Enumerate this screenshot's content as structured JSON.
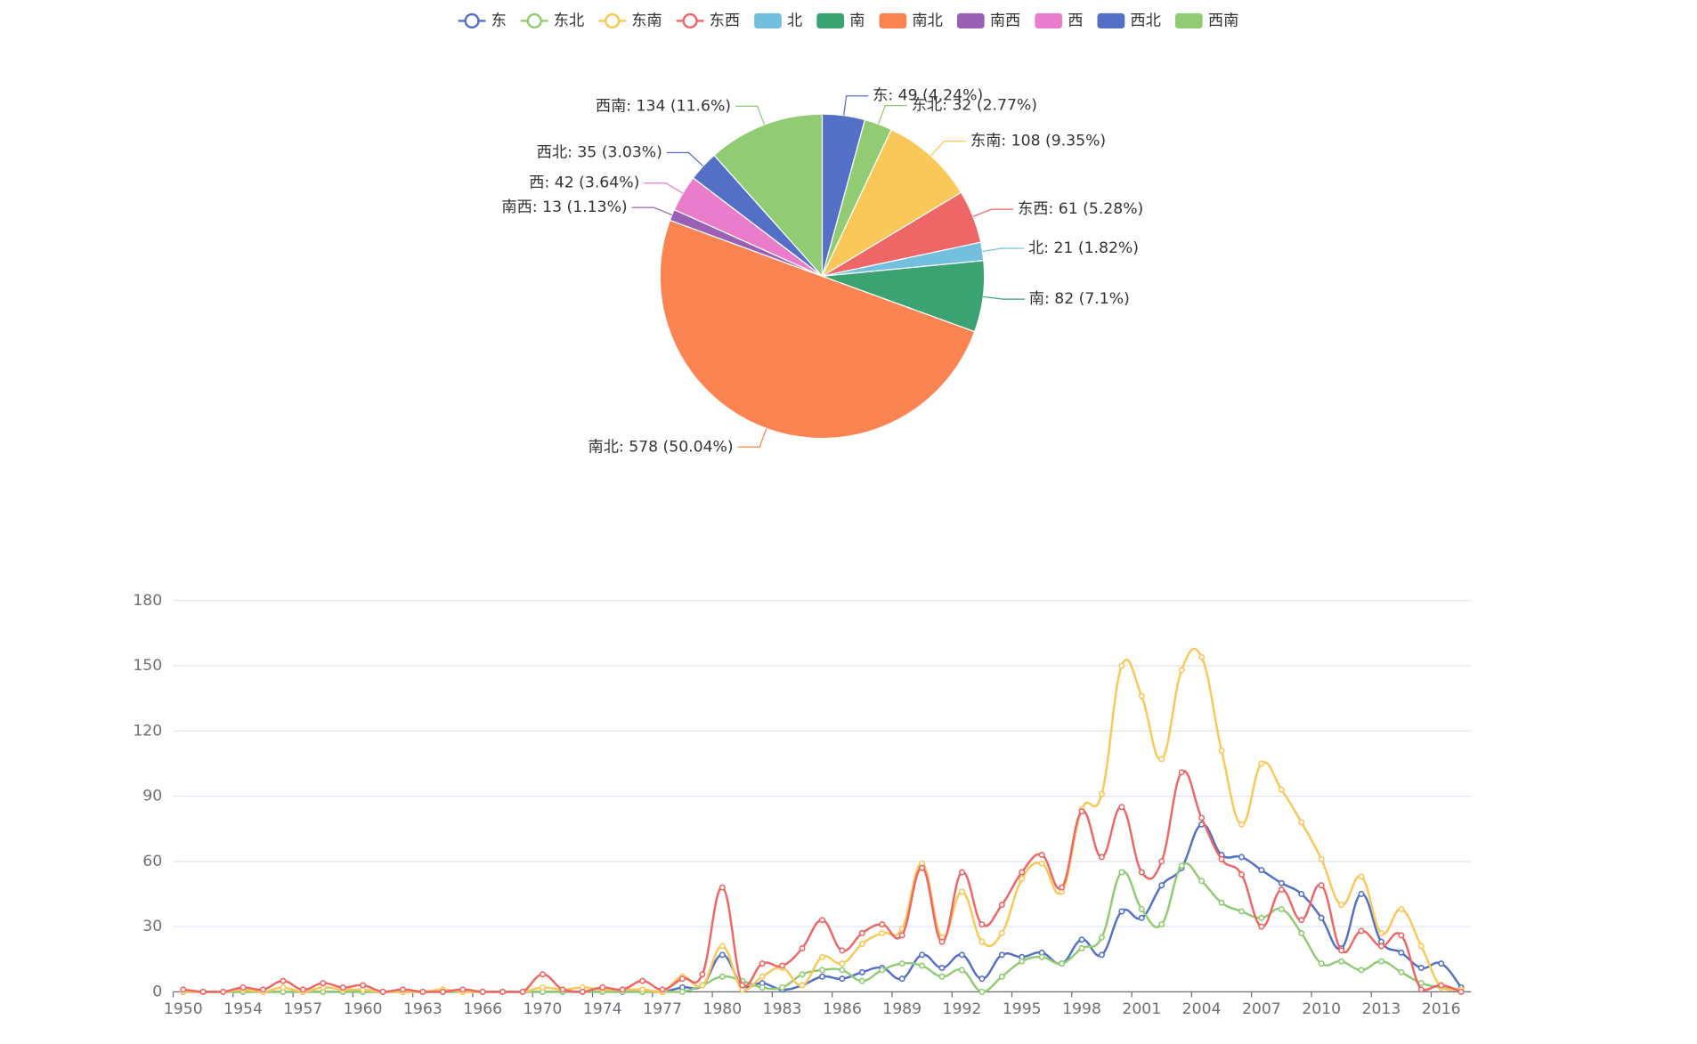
{
  "chart_data": [
    {
      "type": "pie",
      "categories": [
        "东",
        "东北",
        "东南",
        "东西",
        "北",
        "南",
        "南北",
        "南西",
        "西",
        "西北",
        "西南"
      ],
      "values": [
        49,
        32,
        108,
        61,
        21,
        82,
        578,
        13,
        42,
        35,
        134
      ],
      "value_labels": [
        "东: 49 (4.24%)",
        "东北: 32 (2.77%)",
        "东南: 108 (9.35%)",
        "东西: 61 (5.28%)",
        "北: 21 (1.82%)",
        "南: 82 (7.1%)",
        "南北: 578 (50.04%)",
        "南西: 13 (1.13%)",
        "西: 42 (3.64%)",
        "西北: 35 (3.03%)",
        "西南: 134 (11.6%)"
      ],
      "colors": [
        "#5470c6",
        "#91cc75",
        "#fac858",
        "#ee6666",
        "#73c0de",
        "#3ba272",
        "#fc8452",
        "#9a60b4",
        "#ea7ccc",
        "#5470c6",
        "#91cc75"
      ]
    },
    {
      "type": "line",
      "categories": [
        "1950",
        null,
        null,
        "1954",
        null,
        null,
        "1957",
        null,
        null,
        "1960",
        null,
        null,
        "1963",
        null,
        null,
        "1966",
        null,
        null,
        "1970",
        null,
        null,
        "1974",
        null,
        null,
        "1977",
        null,
        null,
        "1980",
        null,
        null,
        "1983",
        null,
        null,
        "1986",
        null,
        null,
        "1989",
        null,
        null,
        "1992",
        null,
        null,
        "1995",
        null,
        null,
        "1998",
        null,
        null,
        "2001",
        null,
        null,
        "2004",
        null,
        null,
        "2007",
        null,
        null,
        "2010",
        null,
        null,
        "2013",
        null,
        null,
        "2016",
        null
      ],
      "ylim": [
        0,
        180
      ],
      "yticks": [
        0,
        30,
        60,
        90,
        120,
        150,
        180
      ],
      "grid": true,
      "series": [
        {
          "name": "东",
          "color": "#5470c6",
          "values": [
            0,
            0,
            0,
            0,
            0,
            0,
            0,
            0,
            0,
            0,
            0,
            0,
            0,
            0,
            0,
            0,
            0,
            0,
            0,
            0,
            0,
            0,
            0,
            0,
            0,
            2,
            3,
            17,
            3,
            4,
            1,
            3,
            7,
            6,
            9,
            11,
            6,
            17,
            11,
            17,
            6,
            17,
            16,
            18,
            13,
            24,
            17,
            37,
            34,
            49,
            57,
            77,
            63,
            62,
            56,
            50,
            45,
            34,
            20,
            45,
            23,
            18,
            11,
            13,
            2
          ]
        },
        {
          "name": "东北",
          "color": "#91cc75",
          "values": [
            0,
            0,
            0,
            0,
            0,
            0,
            0,
            0,
            0,
            0,
            0,
            0,
            0,
            0,
            0,
            0,
            0,
            0,
            0,
            0,
            0,
            0,
            0,
            0,
            0,
            0,
            3,
            7,
            5,
            2,
            2,
            8,
            10,
            10,
            5,
            10,
            13,
            12,
            7,
            10,
            0,
            7,
            14,
            16,
            13,
            20,
            25,
            55,
            38,
            31,
            58,
            51,
            41,
            37,
            34,
            38,
            27,
            13,
            14,
            10,
            14,
            9,
            4,
            2,
            1
          ]
        },
        {
          "name": "东南",
          "color": "#fac858",
          "values": [
            0,
            0,
            0,
            1,
            0,
            2,
            0,
            2,
            1,
            1,
            0,
            0,
            0,
            1,
            0,
            0,
            0,
            0,
            2,
            1,
            2,
            1,
            1,
            1,
            0,
            7,
            3,
            21,
            1,
            7,
            11,
            3,
            16,
            13,
            22,
            27,
            29,
            59,
            25,
            46,
            23,
            27,
            52,
            59,
            46,
            84,
            91,
            150,
            136,
            107,
            148,
            154,
            111,
            77,
            105,
            93,
            78,
            61,
            40,
            53,
            27,
            38,
            21,
            2,
            1
          ]
        },
        {
          "name": "东西",
          "color": "#ee6666",
          "values": [
            1,
            0,
            0,
            2,
            1,
            5,
            1,
            4,
            2,
            3,
            0,
            1,
            0,
            0,
            1,
            0,
            0,
            0,
            8,
            1,
            0,
            2,
            1,
            5,
            1,
            6,
            8,
            48,
            3,
            13,
            12,
            20,
            33,
            19,
            27,
            31,
            26,
            57,
            23,
            55,
            31,
            40,
            55,
            63,
            48,
            83,
            62,
            85,
            55,
            60,
            101,
            80,
            61,
            54,
            30,
            47,
            33,
            49,
            19,
            28,
            21,
            26,
            1,
            3,
            0
          ]
        }
      ]
    }
  ]
}
